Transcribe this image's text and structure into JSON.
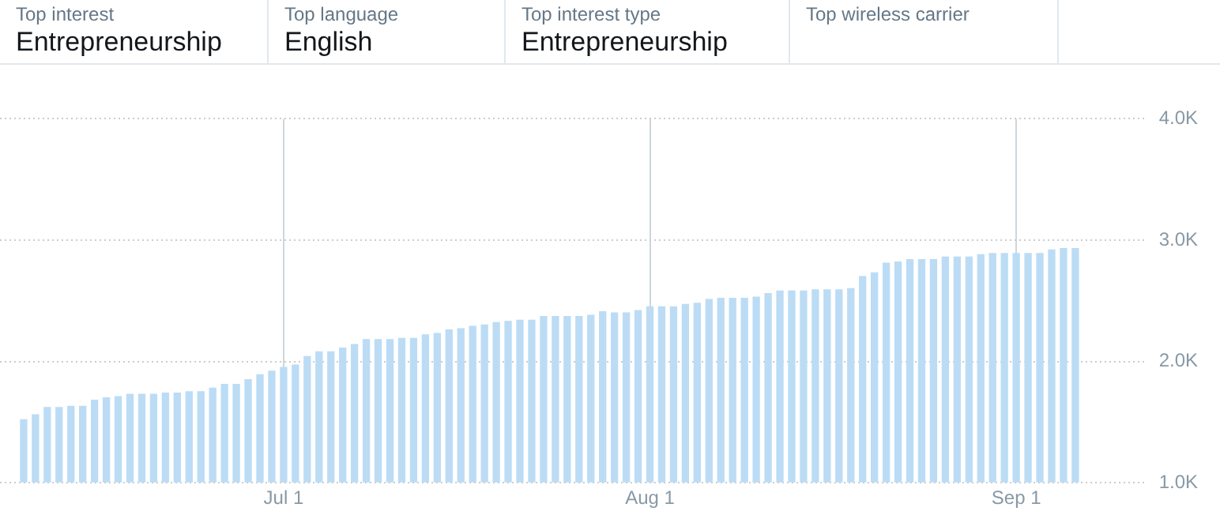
{
  "chart_data": [
    {
      "type": "other",
      "annotations": [
        "Top interest",
        "Entrepreneurship",
        "Top language",
        "English",
        "Top interest type",
        "Entrepreneurship",
        "Top wireless carrier"
      ]
    },
    {
      "type": "bar",
      "x": [
        "--06-09",
        "--06-10",
        "--06-11",
        "--06-12",
        "--06-13",
        "--06-14",
        "--06-15",
        "--06-16",
        "--06-17",
        "--06-18",
        "--06-19",
        "--06-20",
        "--06-21",
        "--06-22",
        "--06-23",
        "--06-24",
        "--06-25",
        "--06-26",
        "--06-27",
        "--06-28",
        "--06-29",
        "--06-30",
        "--07-01",
        "--07-02",
        "--07-03",
        "--07-04",
        "--07-05",
        "--07-06",
        "--07-07",
        "--07-08",
        "--07-09",
        "--07-10",
        "--07-11",
        "--07-12",
        "--07-13",
        "--07-14",
        "--07-15",
        "--07-16",
        "--07-17",
        "--07-18",
        "--07-19",
        "--07-20",
        "--07-21",
        "--07-22",
        "--07-23",
        "--07-24",
        "--07-25",
        "--07-26",
        "--07-27",
        "--07-28",
        "--07-29",
        "--07-30",
        "--07-31",
        "--08-01",
        "--08-02",
        "--08-03",
        "--08-04",
        "--08-05",
        "--08-06",
        "--08-07",
        "--08-08",
        "--08-09",
        "--08-10",
        "--08-11",
        "--08-12",
        "--08-13",
        "--08-14",
        "--08-15",
        "--08-16",
        "--08-17",
        "--08-18",
        "--08-19",
        "--08-20",
        "--08-21",
        "--08-22",
        "--08-23",
        "--08-24",
        "--08-25",
        "--08-26",
        "--08-27",
        "--08-28",
        "--08-29",
        "--08-30",
        "--08-31",
        "--09-01",
        "--09-02",
        "--09-03",
        "--09-04",
        "--09-05",
        "--09-06"
      ],
      "values": [
        1.52,
        1.56,
        1.62,
        1.62,
        1.63,
        1.63,
        1.68,
        1.7,
        1.71,
        1.73,
        1.73,
        1.73,
        1.74,
        1.74,
        1.75,
        1.75,
        1.78,
        1.81,
        1.81,
        1.85,
        1.89,
        1.92,
        1.95,
        1.97,
        2.04,
        2.08,
        2.08,
        2.11,
        2.14,
        2.18,
        2.18,
        2.18,
        2.19,
        2.19,
        2.22,
        2.23,
        2.26,
        2.27,
        2.29,
        2.3,
        2.32,
        2.33,
        2.34,
        2.34,
        2.37,
        2.37,
        2.37,
        2.37,
        2.38,
        2.41,
        2.4,
        2.4,
        2.42,
        2.45,
        2.45,
        2.45,
        2.47,
        2.48,
        2.51,
        2.52,
        2.52,
        2.52,
        2.53,
        2.56,
        2.58,
        2.58,
        2.58,
        2.59,
        2.59,
        2.59,
        2.6,
        2.7,
        2.73,
        2.81,
        2.82,
        2.84,
        2.84,
        2.84,
        2.86,
        2.86,
        2.86,
        2.88,
        2.89,
        2.89,
        2.89,
        2.89,
        2.89,
        2.92,
        2.93,
        2.93
      ],
      "color": "#bcdcf5",
      "xlim": [
        "--06-07",
        "--09-12"
      ],
      "xticks": [
        {
          "value": "--07-01",
          "label": "Jul 1"
        },
        {
          "value": "--08-01",
          "label": "Aug 1"
        },
        {
          "value": "--09-01",
          "label": "Sep 1"
        }
      ],
      "ylim": [
        1,
        4
      ],
      "yticks": [
        {
          "value": 1,
          "label": "1.0K"
        },
        {
          "value": 2,
          "label": "2.0K"
        },
        {
          "value": 3,
          "label": "3.0K"
        },
        {
          "value": 4,
          "label": "4.0K"
        }
      ],
      "grid": true,
      "legend": false
    }
  ]
}
